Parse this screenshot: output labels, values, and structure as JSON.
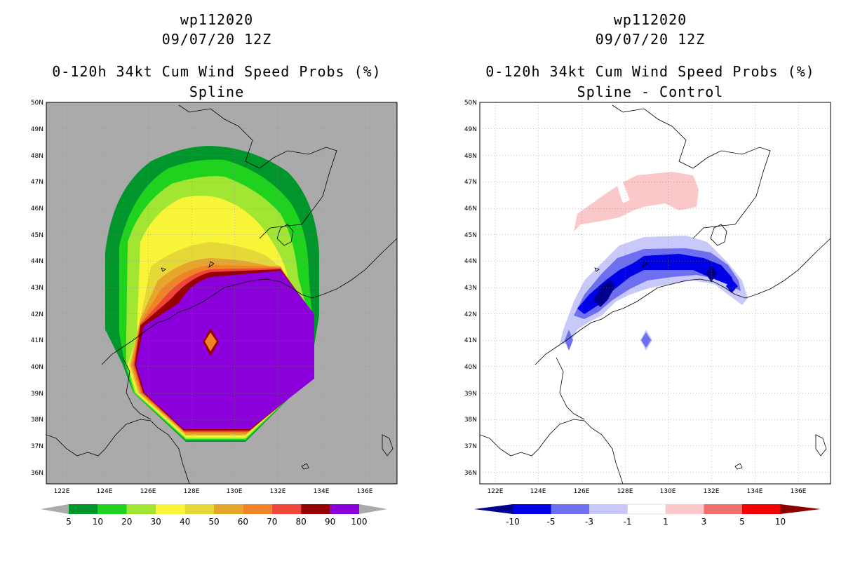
{
  "panels": [
    {
      "storm_id": "wp112020",
      "datetime": "09/07/20 12Z",
      "product": "0-120h 34kt Cum Wind Speed Probs (%)",
      "subtitle": "Spline",
      "colorbar": {
        "labels": [
          "5",
          "10",
          "20",
          "30",
          "40",
          "50",
          "60",
          "70",
          "80",
          "90",
          "100"
        ],
        "colors": [
          "#00962c",
          "#1ed21e",
          "#a0e632",
          "#f8f538",
          "#e6d836",
          "#e6a62c",
          "#f08228",
          "#f0463a",
          "#960000",
          "#8c00dc"
        ],
        "below_color": "#aaaaaa",
        "above_color": "#aaaaaa"
      }
    },
    {
      "storm_id": "wp112020",
      "datetime": "09/07/20 12Z",
      "product": "0-120h 34kt Cum Wind Speed Probs (%)",
      "subtitle": "Spline - Control",
      "colorbar": {
        "labels": [
          "-10",
          "-5",
          "-3",
          "-1",
          "1",
          "3",
          "5",
          "10"
        ],
        "colors": [
          "#0000e6",
          "#6e6ef0",
          "#c8c8fa",
          "#ffffff",
          "#fac8c8",
          "#f06e6e",
          "#f00000"
        ],
        "below_color": "#00008c",
        "above_color": "#8c0000"
      }
    }
  ],
  "map": {
    "lat_labels": [
      "50N",
      "49N",
      "48N",
      "47N",
      "46N",
      "45N",
      "44N",
      "43N",
      "42N",
      "41N",
      "40N",
      "39N",
      "38N",
      "37N",
      "36N"
    ],
    "lon_labels": [
      "122E",
      "124E",
      "126E",
      "128E",
      "130E",
      "132E",
      "134E",
      "136E"
    ],
    "land_color": "#aaaaaa",
    "ocean_color": "#ffffff"
  }
}
